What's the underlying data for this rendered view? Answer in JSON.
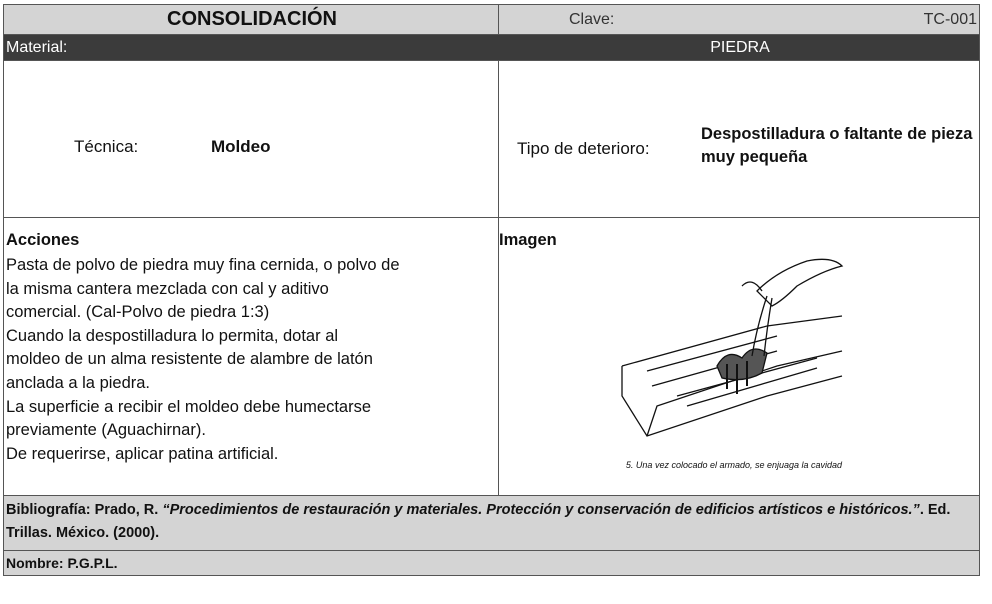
{
  "header": {
    "title": "CONSOLIDACIÓN",
    "clave_label": "Clave:",
    "clave": "TC-001"
  },
  "material": {
    "label": "Material:",
    "value": "PIEDRA"
  },
  "tecnica": {
    "label": "Técnica:",
    "value": "Moldeo"
  },
  "deterioro": {
    "label": "Tipo de deterioro:",
    "value": "Despostilladura o faltante de pieza muy pequeña"
  },
  "acciones": {
    "title": "Acciones",
    "lines": [
      "Pasta de polvo de piedra muy fina cernida, o polvo de",
      "la misma cantera mezclada con cal y aditivo",
      "comercial. (Cal-Polvo de piedra 1:3)",
      "Cuando la despostilladura lo permita, dotar al",
      "moldeo de un alma resistente de alambre de latón",
      "anclada a la piedra.",
      "La superficie a recibir el moldeo debe humectarse",
      "previamente (Aguachirnar).",
      "De requerirse, aplicar patina artificial."
    ]
  },
  "imagen": {
    "title": "Imagen",
    "caption": "5. Una vez colocado el armado, se enjuaga la cavidad"
  },
  "bibliografia": {
    "label": "Bibliografía:",
    "author": "Prado, R.",
    "work": "“Procedimientos de restauración y materiales. Protección y conservación de edificios artísticos e históricos.”",
    "rest": ". Ed. Trillas. México. (2000)."
  },
  "nombre": {
    "label": "Nombre:",
    "value": "P.G.P.L."
  }
}
